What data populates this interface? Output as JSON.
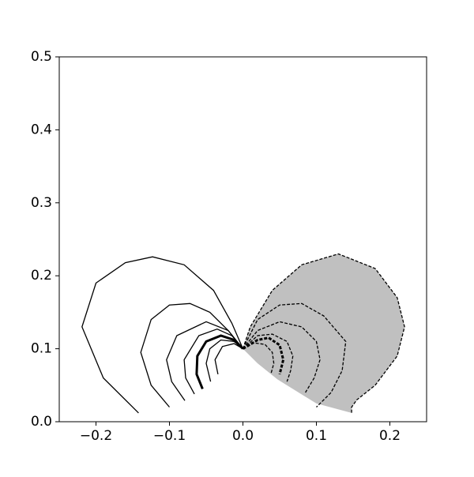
{
  "chart_data": {
    "type": "line",
    "xlim": [
      -0.25,
      0.25
    ],
    "ylim": [
      0,
      0.5
    ],
    "xticks": [
      {
        "value": -0.2,
        "label": "−0.2"
      },
      {
        "value": -0.1,
        "label": "−0.1"
      },
      {
        "value": 0,
        "label": "0.0"
      },
      0.1,
      0.2
    ],
    "yticks": [
      {
        "value": 0,
        "label": "0.0"
      },
      0.1,
      0.2,
      0.3,
      0.4,
      0.5
    ],
    "grid": false,
    "series": [
      {
        "color": "#c0c0c0",
        "style": "fill",
        "x": [
          0,
          0.01,
          0.04,
          0.08,
          0.13,
          0.18,
          0.21,
          0.22,
          0.21,
          0.18,
          0.155,
          0.148,
          0.148,
          0.1,
          0.047,
          0.02,
          0
        ],
        "values": [
          0.1,
          0.13,
          0.18,
          0.215,
          0.23,
          0.21,
          0.17,
          0.13,
          0.09,
          0.05,
          0.03,
          0.02,
          0.012,
          0.025,
          0.058,
          0.08,
          0.1
        ]
      },
      {
        "color": "#000000",
        "style": "solid",
        "width": 1.3,
        "x": [
          -0.142,
          -0.19,
          -0.219,
          -0.2,
          -0.16,
          -0.123,
          -0.08,
          -0.04,
          -0.015,
          0
        ],
        "values": [
          0.012,
          0.06,
          0.13,
          0.19,
          0.218,
          0.226,
          0.215,
          0.18,
          0.135,
          0.1
        ]
      },
      {
        "color": "#000000",
        "style": "solid",
        "width": 1.3,
        "x": [
          -0.1,
          -0.125,
          -0.139,
          -0.125,
          -0.1,
          -0.072,
          -0.045,
          -0.02,
          0
        ],
        "values": [
          0.02,
          0.05,
          0.095,
          0.14,
          0.16,
          0.162,
          0.15,
          0.125,
          0.1
        ]
      },
      {
        "color": "#000000",
        "style": "solid",
        "width": 1.3,
        "x": [
          -0.079,
          -0.097,
          -0.104,
          -0.09,
          -0.05,
          -0.02,
          0
        ],
        "values": [
          0.029,
          0.055,
          0.085,
          0.118,
          0.137,
          0.125,
          0.1
        ]
      },
      {
        "color": "#000000",
        "style": "solid",
        "width": 1.3,
        "x": [
          -0.066,
          -0.078,
          -0.08,
          -0.06,
          -0.035,
          -0.015,
          0
        ],
        "values": [
          0.038,
          0.06,
          0.085,
          0.118,
          0.127,
          0.118,
          0.1
        ]
      },
      {
        "color": "#000000",
        "style": "solid",
        "width": 3,
        "x": [
          -0.055,
          -0.063,
          -0.062,
          -0.05,
          -0.03,
          -0.012,
          0
        ],
        "values": [
          0.045,
          0.065,
          0.09,
          0.11,
          0.118,
          0.112,
          0.1
        ]
      },
      {
        "color": "#000000",
        "style": "solid",
        "width": 1.3,
        "x": [
          -0.044,
          -0.05,
          -0.045,
          -0.03,
          -0.012,
          0
        ],
        "values": [
          0.055,
          0.08,
          0.1,
          0.112,
          0.11,
          0.1
        ]
      },
      {
        "color": "#000000",
        "style": "solid",
        "width": 1.3,
        "x": [
          -0.034,
          -0.038,
          -0.028,
          -0.012,
          0
        ],
        "values": [
          0.065,
          0.085,
          0.103,
          0.107,
          0.1
        ]
      },
      {
        "color": "#000000",
        "style": "dashed",
        "width": 1.3,
        "x": [
          0,
          0.01,
          0.04,
          0.08,
          0.13,
          0.18,
          0.21,
          0.22,
          0.21,
          0.18,
          0.155,
          0.148,
          0.148
        ],
        "values": [
          0.1,
          0.13,
          0.18,
          0.215,
          0.23,
          0.21,
          0.17,
          0.13,
          0.09,
          0.05,
          0.03,
          0.02,
          0.012
        ]
      },
      {
        "color": "#000000",
        "style": "dashed",
        "width": 1.3,
        "x": [
          0,
          0.02,
          0.05,
          0.08,
          0.11,
          0.14,
          0.135,
          0.12,
          0.1
        ],
        "values": [
          0.1,
          0.14,
          0.16,
          0.162,
          0.145,
          0.11,
          0.07,
          0.04,
          0.02
        ]
      },
      {
        "color": "#000000",
        "style": "dashed",
        "width": 1.3,
        "x": [
          0,
          0.02,
          0.05,
          0.08,
          0.1,
          0.105,
          0.097,
          0.085
        ],
        "values": [
          0.1,
          0.125,
          0.137,
          0.13,
          0.11,
          0.085,
          0.06,
          0.04
        ]
      },
      {
        "color": "#000000",
        "style": "dashed",
        "width": 1.3,
        "x": [
          0,
          0.02,
          0.04,
          0.06,
          0.068,
          0.065,
          0.06
        ],
        "values": [
          0.1,
          0.118,
          0.12,
          0.11,
          0.09,
          0.07,
          0.055
        ]
      },
      {
        "color": "#000000",
        "style": "dashed",
        "width": 3,
        "x": [
          0,
          0.02,
          0.035,
          0.05,
          0.055,
          0.05
        ],
        "values": [
          0.1,
          0.112,
          0.115,
          0.105,
          0.085,
          0.065
        ]
      },
      {
        "color": "#000000",
        "style": "dashed",
        "width": 1.3,
        "x": [
          0,
          0.015,
          0.03,
          0.04,
          0.042,
          0.038
        ],
        "values": [
          0.1,
          0.108,
          0.106,
          0.095,
          0.08,
          0.065
        ]
      }
    ]
  }
}
